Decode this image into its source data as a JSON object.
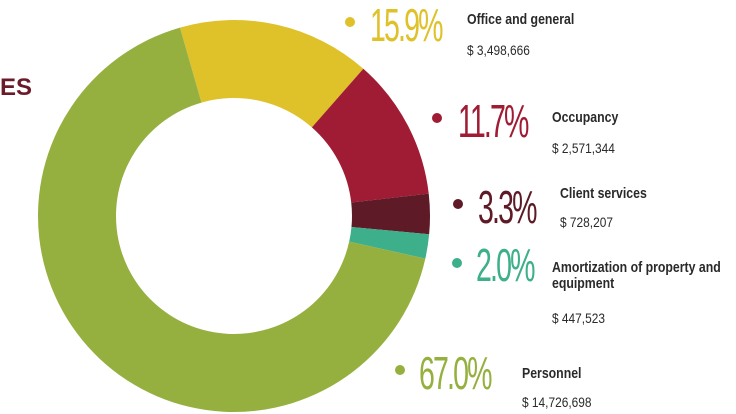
{
  "chart_data": {
    "type": "donut",
    "title": "ES",
    "categories": [
      "Office and general",
      "Occupancy",
      "Client services",
      "Amortization of property and equipment",
      "Personnel"
    ],
    "values": [
      15.9,
      11.7,
      3.3,
      2.0,
      67.0
    ],
    "value_labels": [
      "15.9%",
      "11.7%",
      "3.3%",
      "2.0%",
      "67.0%"
    ],
    "amount_labels": [
      "$ 3,498,666",
      "$ 2,571,344",
      "$ 728,207",
      "$ 447,523",
      "$ 14,726,698"
    ],
    "colors": [
      "#dfc12a",
      "#a01c34",
      "#5e1a26",
      "#3daf8a",
      "#96b03f"
    ]
  }
}
